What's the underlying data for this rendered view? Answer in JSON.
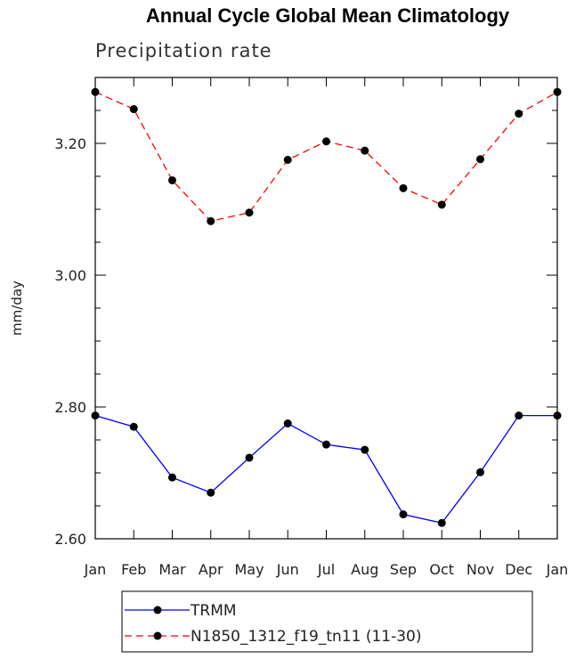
{
  "chart_data": {
    "type": "line",
    "title": "Annual Cycle Global Mean Climatology",
    "subtitle": "Precipitation rate",
    "ylabel": "mm/day",
    "xlabel": "",
    "categories": [
      "Jan",
      "Feb",
      "Mar",
      "Apr",
      "May",
      "Jun",
      "Jul",
      "Aug",
      "Sep",
      "Oct",
      "Nov",
      "Dec",
      "Jan"
    ],
    "ylim": [
      2.6,
      3.3
    ],
    "yticks": [
      2.6,
      2.8,
      3.0,
      3.2
    ],
    "ytick_labels": [
      "2.60",
      "2.80",
      "3.00",
      "3.20"
    ],
    "grid": false,
    "legend_position": "bottom",
    "series": [
      {
        "name": "TRMM",
        "color": "#0000ff",
        "style": "solid",
        "values": [
          2.787,
          2.77,
          2.693,
          2.67,
          2.723,
          2.775,
          2.743,
          2.735,
          2.637,
          2.624,
          2.701,
          2.787,
          2.787
        ]
      },
      {
        "name": "N1850_1312_f19_tn11 (11-30)",
        "color": "#ff0000",
        "style": "dashed",
        "values": [
          3.278,
          3.252,
          3.144,
          3.082,
          3.095,
          3.175,
          3.203,
          3.189,
          3.132,
          3.107,
          3.176,
          3.245,
          3.278
        ]
      }
    ]
  }
}
